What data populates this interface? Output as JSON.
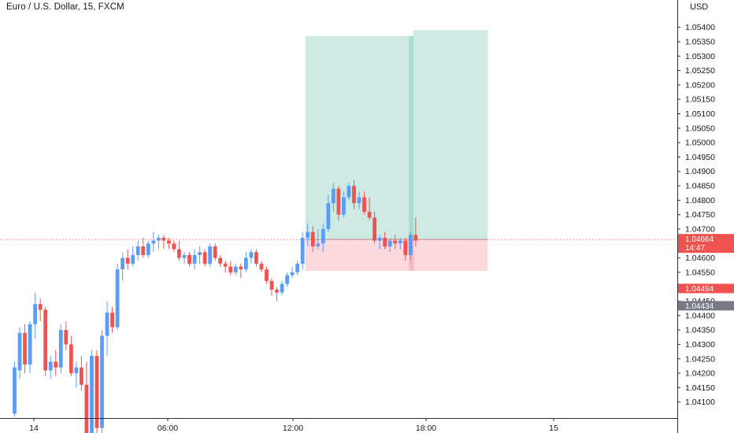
{
  "header": {
    "title": "Euro / U.S. Dollar, 15, FXCM",
    "currency": "USD"
  },
  "price_axis": {
    "labels": [
      "1.05400",
      "1.05350",
      "1.05300",
      "1.05250",
      "1.05200",
      "1.05150",
      "1.05100",
      "1.05050",
      "1.05000",
      "1.04950",
      "1.04900",
      "1.04850",
      "1.04800",
      "1.04750",
      "1.04700",
      "1.04650",
      "1.04600",
      "1.04550",
      "1.04500",
      "1.04450",
      "1.04400",
      "1.04350",
      "1.04300",
      "1.04250",
      "1.04200",
      "1.04150",
      "1.04100"
    ]
  },
  "time_axis": {
    "labels": [
      "14",
      "06:00",
      "12:00",
      "18:00",
      "15"
    ]
  },
  "badges": {
    "last_price": "1.04664",
    "countdown": "14:47",
    "stop_price": "1.04494",
    "other_price": "1.04434"
  },
  "colors": {
    "up": "#5b9cf6",
    "down": "#ef5350",
    "profit_zone": "#cfeae3",
    "loss_zone": "#fbd9dd",
    "last_price_line": "#ef5350",
    "grey_badge": "#787b86"
  },
  "chart_data": {
    "type": "candlestick",
    "symbol": "Euro / U.S. Dollar",
    "interval": "15",
    "source": "FXCM",
    "ylim": [
      1.0408,
      1.0541
    ],
    "price_ticks": [
      1.054,
      1.0535,
      1.053,
      1.0525,
      1.052,
      1.0515,
      1.051,
      1.0505,
      1.05,
      1.0495,
      1.049,
      1.0485,
      1.048,
      1.0475,
      1.047,
      1.0465,
      1.046,
      1.0455,
      1.045,
      1.0445,
      1.044,
      1.0435,
      1.043,
      1.0425,
      1.042,
      1.0415,
      1.041
    ],
    "time_ticks": [
      "14",
      "06:00",
      "12:00",
      "18:00",
      "15"
    ],
    "last_price": 1.04664,
    "candles": [
      {
        "o": 1.0406,
        "h": 1.0424,
        "l": 1.0405,
        "c": 1.0422
      },
      {
        "o": 1.0421,
        "h": 1.0436,
        "l": 1.0418,
        "c": 1.0434
      },
      {
        "o": 1.0434,
        "h": 1.0437,
        "l": 1.042,
        "c": 1.0423
      },
      {
        "o": 1.0423,
        "h": 1.0438,
        "l": 1.042,
        "c": 1.0437
      },
      {
        "o": 1.0437,
        "h": 1.0448,
        "l": 1.0432,
        "c": 1.0444
      },
      {
        "o": 1.0444,
        "h": 1.0446,
        "l": 1.0438,
        "c": 1.0442
      },
      {
        "o": 1.0442,
        "h": 1.0443,
        "l": 1.0419,
        "c": 1.0421
      },
      {
        "o": 1.0421,
        "h": 1.0426,
        "l": 1.0418,
        "c": 1.0424
      },
      {
        "o": 1.0424,
        "h": 1.0428,
        "l": 1.0419,
        "c": 1.0422
      },
      {
        "o": 1.0422,
        "h": 1.0437,
        "l": 1.042,
        "c": 1.0435
      },
      {
        "o": 1.0435,
        "h": 1.0438,
        "l": 1.0428,
        "c": 1.043
      },
      {
        "o": 1.043,
        "h": 1.0433,
        "l": 1.0419,
        "c": 1.042
      },
      {
        "o": 1.042,
        "h": 1.0424,
        "l": 1.0415,
        "c": 1.0422
      },
      {
        "o": 1.0422,
        "h": 1.0426,
        "l": 1.0414,
        "c": 1.0416
      },
      {
        "o": 1.0416,
        "h": 1.0424,
        "l": 1.0395,
        "c": 1.0397
      },
      {
        "o": 1.0397,
        "h": 1.0428,
        "l": 1.0392,
        "c": 1.0426
      },
      {
        "o": 1.0426,
        "h": 1.0428,
        "l": 1.0399,
        "c": 1.0401
      },
      {
        "o": 1.0401,
        "h": 1.0435,
        "l": 1.0399,
        "c": 1.0433
      },
      {
        "o": 1.0433,
        "h": 1.0445,
        "l": 1.0426,
        "c": 1.0441
      },
      {
        "o": 1.0441,
        "h": 1.0443,
        "l": 1.0434,
        "c": 1.0436
      },
      {
        "o": 1.0436,
        "h": 1.0458,
        "l": 1.0435,
        "c": 1.0456
      },
      {
        "o": 1.0456,
        "h": 1.0462,
        "l": 1.0452,
        "c": 1.046
      },
      {
        "o": 1.046,
        "h": 1.0463,
        "l": 1.0456,
        "c": 1.0458
      },
      {
        "o": 1.0458,
        "h": 1.0464,
        "l": 1.0457,
        "c": 1.0461
      },
      {
        "o": 1.0461,
        "h": 1.0466,
        "l": 1.0459,
        "c": 1.0464
      },
      {
        "o": 1.0464,
        "h": 1.0467,
        "l": 1.046,
        "c": 1.0461
      },
      {
        "o": 1.0461,
        "h": 1.0466,
        "l": 1.046,
        "c": 1.0465
      },
      {
        "o": 1.0465,
        "h": 1.0469,
        "l": 1.0462,
        "c": 1.0466
      },
      {
        "o": 1.0466,
        "h": 1.0468,
        "l": 1.0463,
        "c": 1.0467
      },
      {
        "o": 1.0467,
        "h": 1.0468,
        "l": 1.0463,
        "c": 1.0466
      },
      {
        "o": 1.0466,
        "h": 1.0467,
        "l": 1.0463,
        "c": 1.0465
      },
      {
        "o": 1.0465,
        "h": 1.0466,
        "l": 1.0462,
        "c": 1.0463
      },
      {
        "o": 1.0463,
        "h": 1.0466,
        "l": 1.0459,
        "c": 1.046
      },
      {
        "o": 1.046,
        "h": 1.0462,
        "l": 1.0458,
        "c": 1.0461
      },
      {
        "o": 1.0461,
        "h": 1.0462,
        "l": 1.0457,
        "c": 1.0458
      },
      {
        "o": 1.0458,
        "h": 1.0463,
        "l": 1.0456,
        "c": 1.0461
      },
      {
        "o": 1.0461,
        "h": 1.0464,
        "l": 1.0458,
        "c": 1.0462
      },
      {
        "o": 1.0462,
        "h": 1.0463,
        "l": 1.0457,
        "c": 1.0458
      },
      {
        "o": 1.0458,
        "h": 1.0465,
        "l": 1.0457,
        "c": 1.0464
      },
      {
        "o": 1.0464,
        "h": 1.0465,
        "l": 1.0459,
        "c": 1.046
      },
      {
        "o": 1.046,
        "h": 1.0461,
        "l": 1.0457,
        "c": 1.0458
      },
      {
        "o": 1.0458,
        "h": 1.0459,
        "l": 1.0455,
        "c": 1.0457
      },
      {
        "o": 1.0457,
        "h": 1.0459,
        "l": 1.0454,
        "c": 1.0455
      },
      {
        "o": 1.0455,
        "h": 1.0458,
        "l": 1.0454,
        "c": 1.0457
      },
      {
        "o": 1.0457,
        "h": 1.0458,
        "l": 1.0453,
        "c": 1.0456
      },
      {
        "o": 1.0456,
        "h": 1.0462,
        "l": 1.0455,
        "c": 1.046
      },
      {
        "o": 1.046,
        "h": 1.0463,
        "l": 1.0458,
        "c": 1.0462
      },
      {
        "o": 1.0462,
        "h": 1.0463,
        "l": 1.0457,
        "c": 1.0458
      },
      {
        "o": 1.0458,
        "h": 1.0459,
        "l": 1.0455,
        "c": 1.0456
      },
      {
        "o": 1.0456,
        "h": 1.0457,
        "l": 1.0451,
        "c": 1.0452
      },
      {
        "o": 1.0452,
        "h": 1.0453,
        "l": 1.0447,
        "c": 1.0449
      },
      {
        "o": 1.0449,
        "h": 1.045,
        "l": 1.0445,
        "c": 1.0448
      },
      {
        "o": 1.0448,
        "h": 1.0452,
        "l": 1.0447,
        "c": 1.0451
      },
      {
        "o": 1.0451,
        "h": 1.0455,
        "l": 1.045,
        "c": 1.0454
      },
      {
        "o": 1.0454,
        "h": 1.0457,
        "l": 1.0453,
        "c": 1.0455
      },
      {
        "o": 1.0455,
        "h": 1.0459,
        "l": 1.0454,
        "c": 1.0458
      },
      {
        "o": 1.0458,
        "h": 1.0469,
        "l": 1.0456,
        "c": 1.0467
      },
      {
        "o": 1.0467,
        "h": 1.0472,
        "l": 1.0464,
        "c": 1.0469
      },
      {
        "o": 1.0469,
        "h": 1.0471,
        "l": 1.0462,
        "c": 1.0464
      },
      {
        "o": 1.0464,
        "h": 1.047,
        "l": 1.0463,
        "c": 1.0465
      },
      {
        "o": 1.0465,
        "h": 1.0472,
        "l": 1.0462,
        "c": 1.047
      },
      {
        "o": 1.047,
        "h": 1.0482,
        "l": 1.0469,
        "c": 1.0479
      },
      {
        "o": 1.0479,
        "h": 1.0486,
        "l": 1.0476,
        "c": 1.0484
      },
      {
        "o": 1.0484,
        "h": 1.0485,
        "l": 1.0473,
        "c": 1.0475
      },
      {
        "o": 1.0475,
        "h": 1.0483,
        "l": 1.0474,
        "c": 1.0481
      },
      {
        "o": 1.0481,
        "h": 1.0486,
        "l": 1.048,
        "c": 1.0485
      },
      {
        "o": 1.0485,
        "h": 1.0487,
        "l": 1.0477,
        "c": 1.0479
      },
      {
        "o": 1.0479,
        "h": 1.0483,
        "l": 1.0477,
        "c": 1.0481
      },
      {
        "o": 1.0481,
        "h": 1.0483,
        "l": 1.0475,
        "c": 1.0476
      },
      {
        "o": 1.0476,
        "h": 1.0481,
        "l": 1.0473,
        "c": 1.0474
      },
      {
        "o": 1.0474,
        "h": 1.0476,
        "l": 1.0465,
        "c": 1.0466
      },
      {
        "o": 1.0466,
        "h": 1.0468,
        "l": 1.0463,
        "c": 1.0467
      },
      {
        "o": 1.0467,
        "h": 1.0469,
        "l": 1.0463,
        "c": 1.0464
      },
      {
        "o": 1.0464,
        "h": 1.0467,
        "l": 1.0462,
        "c": 1.0466
      },
      {
        "o": 1.0466,
        "h": 1.0468,
        "l": 1.0463,
        "c": 1.0465
      },
      {
        "o": 1.0465,
        "h": 1.0467,
        "l": 1.0463,
        "c": 1.0466
      },
      {
        "o": 1.0466,
        "h": 1.0467,
        "l": 1.0459,
        "c": 1.0461
      },
      {
        "o": 1.0461,
        "h": 1.0469,
        "l": 1.0459,
        "c": 1.0468
      },
      {
        "o": 1.0468,
        "h": 1.0474,
        "l": 1.0464,
        "c": 1.0466
      }
    ],
    "positions": [
      {
        "name": "first",
        "entry": 1.04664,
        "target": 1.0537,
        "stop": 1.04555,
        "start_index": 57,
        "end_index": 77
      },
      {
        "name": "second",
        "entry": 1.04664,
        "target": 1.0539,
        "stop": 1.04555,
        "start_index": 77,
        "end_index": 92
      }
    ]
  }
}
